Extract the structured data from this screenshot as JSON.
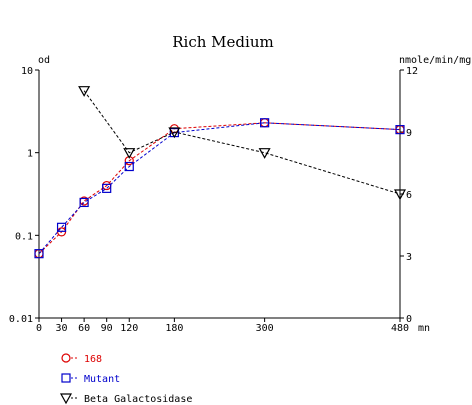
{
  "chart_data": {
    "type": "line",
    "title": "Rich Medium",
    "left_axis": {
      "label": "od",
      "scale": "log",
      "range": [
        0.01,
        10
      ],
      "ticks": [
        {
          "value": 10,
          "label": "10"
        },
        {
          "value": 1,
          "label": "1"
        },
        {
          "value": 0.1,
          "label": "0.1"
        },
        {
          "value": 0.01,
          "label": "0.01"
        }
      ]
    },
    "right_axis": {
      "label": "nmole/min/mg",
      "scale": "linear",
      "range": [
        0,
        12
      ],
      "ticks": [
        {
          "value": 12,
          "label": "12"
        },
        {
          "value": 9,
          "label": "9"
        },
        {
          "value": 6,
          "label": "6"
        },
        {
          "value": 3,
          "label": "3"
        },
        {
          "value": 0,
          "label": "0"
        }
      ]
    },
    "x_axis": {
      "label": "mn",
      "range": [
        0,
        480
      ],
      "ticks": [
        {
          "value": 0,
          "label": "0"
        },
        {
          "value": 30,
          "label": "30"
        },
        {
          "value": 60,
          "label": "60"
        },
        {
          "value": 90,
          "label": "90"
        },
        {
          "value": 120,
          "label": "120"
        },
        {
          "value": 180,
          "label": "180"
        },
        {
          "value": 300,
          "label": "300"
        },
        {
          "value": 480,
          "label": "480"
        }
      ]
    },
    "series": [
      {
        "name": "168",
        "axis": "left",
        "marker": "circle",
        "color": "#dd0000",
        "points": [
          {
            "x": 0,
            "y": 0.06
          },
          {
            "x": 30,
            "y": 0.11
          },
          {
            "x": 60,
            "y": 0.26
          },
          {
            "x": 90,
            "y": 0.4
          },
          {
            "x": 120,
            "y": 0.8
          },
          {
            "x": 180,
            "y": 1.95
          },
          {
            "x": 300,
            "y": 2.3
          },
          {
            "x": 480,
            "y": 1.9
          }
        ]
      },
      {
        "name": "Mutant",
        "axis": "left",
        "marker": "square",
        "color": "#0000cc",
        "points": [
          {
            "x": 0,
            "y": 0.06
          },
          {
            "x": 30,
            "y": 0.125
          },
          {
            "x": 60,
            "y": 0.25
          },
          {
            "x": 90,
            "y": 0.37
          },
          {
            "x": 120,
            "y": 0.68
          },
          {
            "x": 180,
            "y": 1.75
          },
          {
            "x": 300,
            "y": 2.3
          },
          {
            "x": 480,
            "y": 1.9
          }
        ]
      },
      {
        "name": "Beta Galactosidase",
        "axis": "right",
        "marker": "triangle-down",
        "color": "#000000",
        "points": [
          {
            "x": 60,
            "y": 11.0
          },
          {
            "x": 120,
            "y": 8.0
          },
          {
            "x": 180,
            "y": 9.0
          },
          {
            "x": 300,
            "y": 8.0
          },
          {
            "x": 480,
            "y": 6.0
          }
        ]
      }
    ],
    "legend_position": "bottom-left",
    "grid": false
  }
}
